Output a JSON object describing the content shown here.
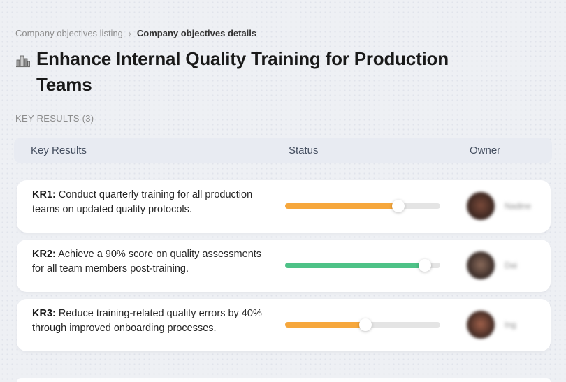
{
  "breadcrumb": {
    "parent": "Company objectives listing",
    "separator": "›",
    "current": "Company objectives details"
  },
  "page": {
    "title": "Enhance Internal Quality Training for Production Teams",
    "title_icon": "cityscape-icon",
    "section_label": "KEY RESULTS (3)"
  },
  "table": {
    "headers": {
      "key_results": "Key Results",
      "status": "Status",
      "owner": "Owner"
    },
    "rows": [
      {
        "kr_label": "KR1:",
        "text": "Conduct quarterly training for all production teams on updated quality protocols.",
        "progress_percent": 73,
        "progress_color": "#F6A73C",
        "owner_name": "Nadine",
        "avatar_colors": [
          "#7a4a3a",
          "#2e1f1b"
        ]
      },
      {
        "kr_label": "KR2:",
        "text": "Achieve a 90% score on quality assessments for all team members post-training.",
        "progress_percent": 90,
        "progress_color": "#4EC287",
        "owner_name": "Dai",
        "avatar_colors": [
          "#8a6a5a",
          "#2b211f"
        ]
      },
      {
        "kr_label": "KR3:",
        "text": "Reduce training-related quality errors by 40% through improved onboarding processes.",
        "progress_percent": 52,
        "progress_color": "#F6A73C",
        "owner_name": "Ing",
        "avatar_colors": [
          "#a0604a",
          "#30201c"
        ]
      }
    ]
  },
  "colors": {
    "page_background": "#EEF0F4",
    "header_background": "#E8EBF2",
    "track": "#E4E4E4",
    "orange": "#F6A73C",
    "green": "#4EC287"
  }
}
